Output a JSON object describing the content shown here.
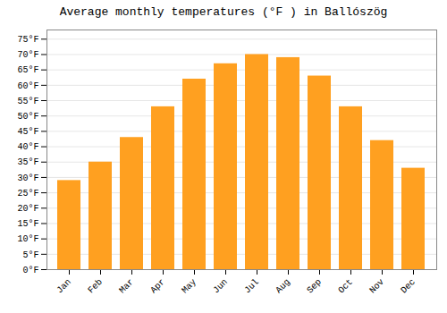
{
  "chart_data": {
    "type": "bar",
    "title": "Average monthly temperatures (°F ) in Ballószög",
    "categories": [
      "Jan",
      "Feb",
      "Mar",
      "Apr",
      "May",
      "Jun",
      "Jul",
      "Aug",
      "Sep",
      "Oct",
      "Nov",
      "Dec"
    ],
    "values": [
      29,
      35,
      43,
      53,
      62,
      67,
      70,
      69,
      63,
      53,
      42,
      33
    ],
    "color": "#FFA020",
    "ylim": [
      0,
      78
    ],
    "yticks": [
      {
        "value": 0,
        "label": "0°F"
      },
      {
        "value": 5,
        "label": "5°F"
      },
      {
        "value": 10,
        "label": "10°F"
      },
      {
        "value": 15,
        "label": "15°F"
      },
      {
        "value": 20,
        "label": "20°F"
      },
      {
        "value": 25,
        "label": "25°F"
      },
      {
        "value": 30,
        "label": "30°F"
      },
      {
        "value": 35,
        "label": "35°F"
      },
      {
        "value": 40,
        "label": "40°F"
      },
      {
        "value": 45,
        "label": "45°F"
      },
      {
        "value": 50,
        "label": "50°F"
      },
      {
        "value": 55,
        "label": "55°F"
      },
      {
        "value": 60,
        "label": "60°F"
      },
      {
        "value": 65,
        "label": "65°F"
      },
      {
        "value": 70,
        "label": "70°F"
      },
      {
        "value": 75,
        "label": "75°F"
      }
    ],
    "grid": true
  }
}
